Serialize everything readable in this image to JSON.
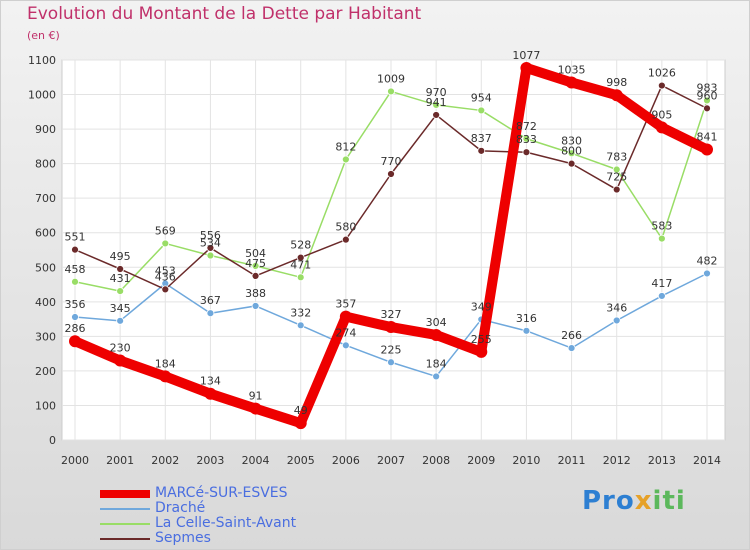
{
  "chart_data": {
    "type": "line",
    "title": "Evolution du Montant de la Dette par Habitant",
    "ylabel": "(en €)",
    "xlabel": "",
    "categories": [
      "2000",
      "2001",
      "2002",
      "2003",
      "2004",
      "2005",
      "2006",
      "2007",
      "2008",
      "2009",
      "2010",
      "2011",
      "2012",
      "2013",
      "2014"
    ],
    "ylim": [
      0,
      1100
    ],
    "yticks": [
      0,
      100,
      200,
      300,
      400,
      500,
      600,
      700,
      800,
      900,
      1000,
      1100
    ],
    "grid": true,
    "legend_placement": "bottom-left",
    "series": [
      {
        "name": "MARCé-SUR-ESVES",
        "color": "#ee0000",
        "values": [
          286,
          230,
          184,
          134,
          91,
          49,
          357,
          327,
          304,
          255,
          1077,
          1035,
          998,
          905,
          841
        ],
        "labels": [
          "286",
          "230",
          "184",
          "134",
          "91",
          "49",
          "357",
          "327",
          "304",
          "255",
          "1077",
          "1035",
          "998",
          "905",
          "841"
        ]
      },
      {
        "name": "Draché",
        "color": "#6fa8dc",
        "values": [
          356,
          345,
          453,
          367,
          388,
          332,
          274,
          225,
          184,
          349,
          316,
          266,
          346,
          417,
          482
        ],
        "labels": [
          "356",
          "345",
          "453",
          "367",
          "388",
          "332",
          "274",
          "225",
          "184",
          "349",
          "316",
          "266",
          "346",
          "417",
          "482"
        ]
      },
      {
        "name": "La Celle-Saint-Avant",
        "color": "#99dd66",
        "values": [
          458,
          431,
          569,
          534,
          504,
          471,
          812,
          1009,
          970,
          954,
          872,
          830,
          783,
          583,
          983
        ],
        "labels": [
          "458",
          "431",
          "569",
          "534",
          "504",
          "471",
          "812",
          "1009",
          "970",
          "954",
          "872",
          "830",
          "783",
          "583",
          "983"
        ]
      },
      {
        "name": "Sepmes",
        "color": "#6b2a2a",
        "values": [
          551,
          495,
          436,
          556,
          475,
          528,
          580,
          770,
          941,
          837,
          833,
          800,
          725,
          1026,
          960
        ],
        "labels": [
          "551",
          "495",
          "436",
          "556",
          "475",
          "528",
          "580",
          "770",
          "941",
          "837",
          "833",
          "800",
          "725",
          "1026",
          "960"
        ]
      }
    ]
  },
  "logo": {
    "part1": "Pro",
    "part2": "x",
    "part3": "iti"
  }
}
